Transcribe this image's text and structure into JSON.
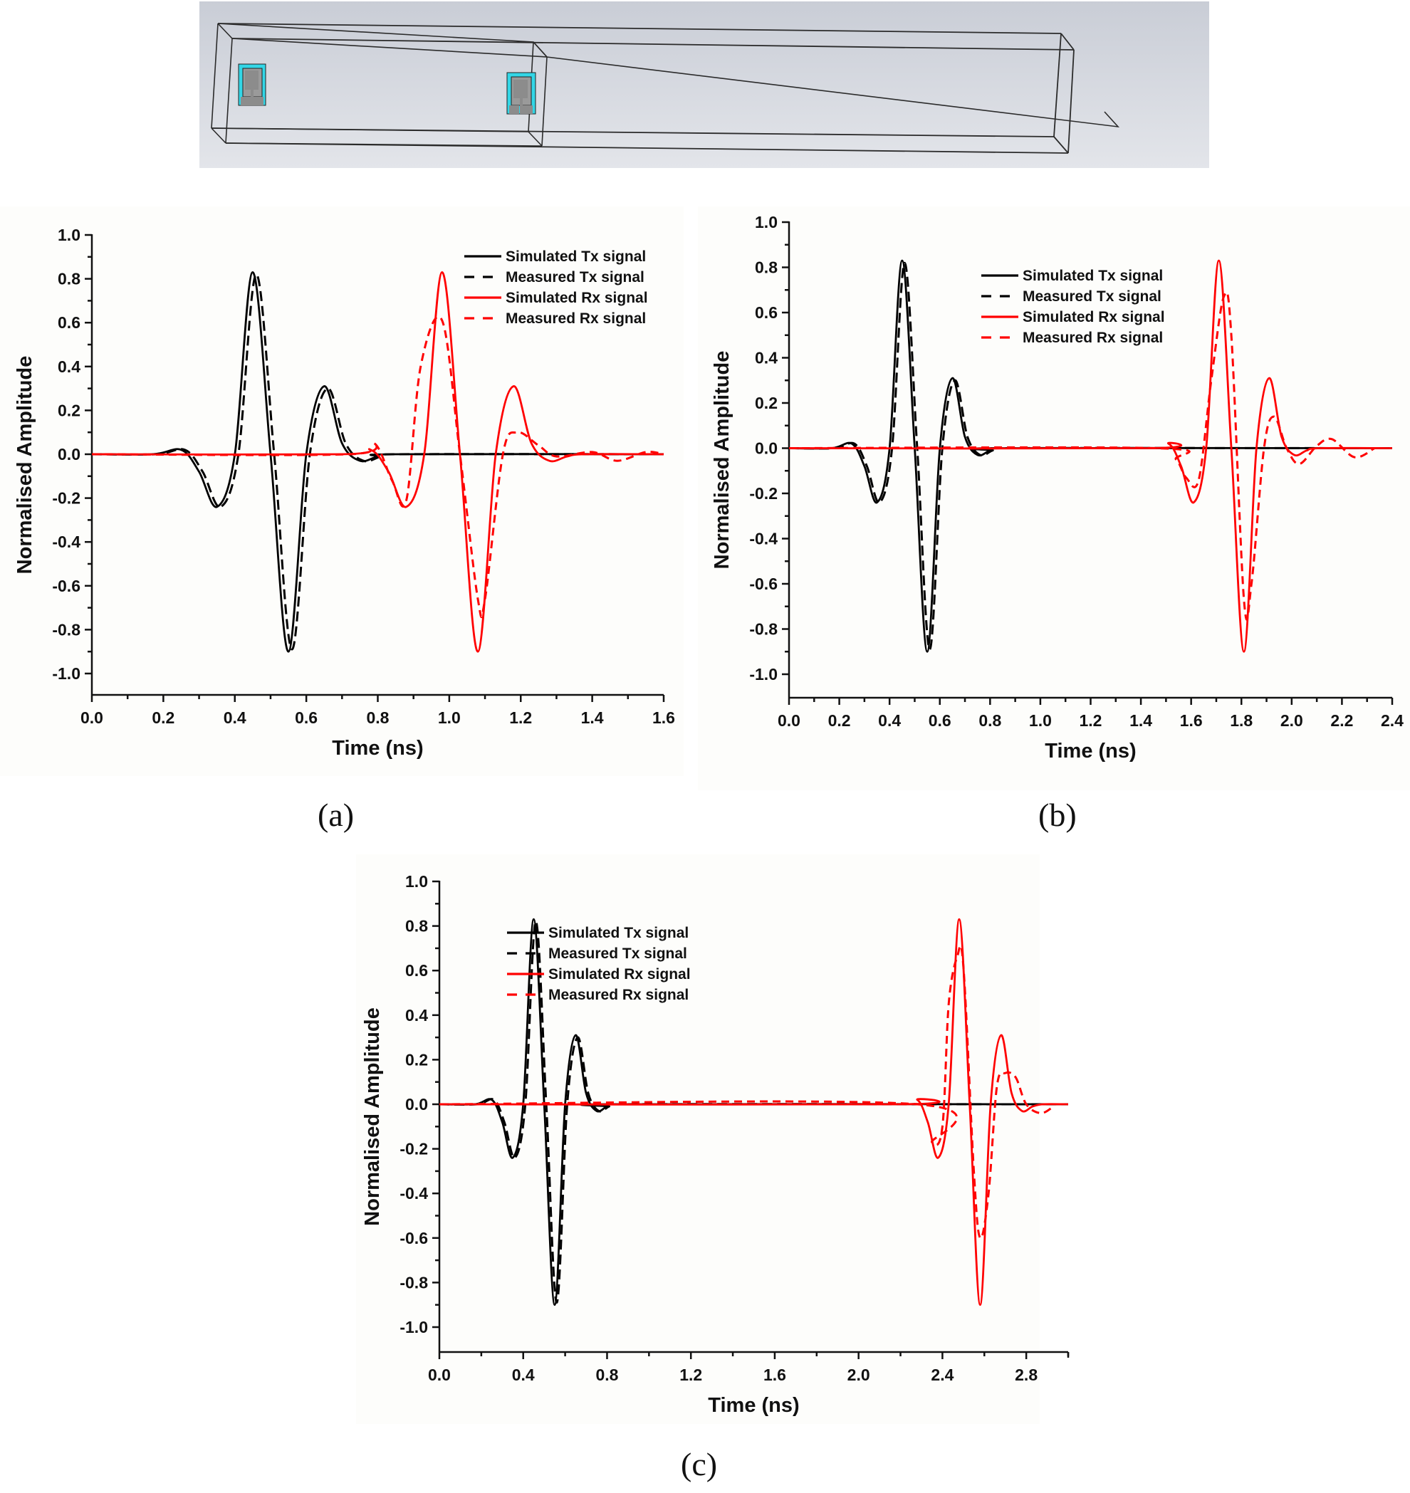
{
  "figure": {
    "captions": [
      "(a)",
      "(b)",
      "(c)"
    ],
    "model_view": {
      "description": "3D simulation model: transparent box with two antennas (Tx left, Rx right)",
      "colors": {
        "background": "#d6d9e0",
        "substrate": "#33d6e6",
        "metal": "#8c8c8c",
        "outline": "#222222"
      }
    }
  },
  "legend": [
    {
      "label": "Simulated Tx signal",
      "color": "#000000",
      "style": "solid"
    },
    {
      "label": "Measured Tx signal",
      "color": "#000000",
      "style": "dashed"
    },
    {
      "label": "Simulated Rx signal",
      "color": "#ff0000",
      "style": "solid"
    },
    {
      "label": "Measured Rx signal",
      "color": "#ff0000",
      "style": "dashed"
    }
  ],
  "chart_data": [
    {
      "id": "a",
      "type": "line",
      "title": "",
      "xlabel": "Time (ns)",
      "ylabel": "Normalised Amplitude",
      "xlim": [
        0.0,
        1.6
      ],
      "ylim": [
        -1.1,
        1.0
      ],
      "xticks": [
        "0.0",
        "0.2",
        "0.4",
        "0.6",
        "0.8",
        "1.0",
        "1.2",
        "1.4",
        "1.6"
      ],
      "yticks": [
        "1.0",
        "0.8",
        "0.6",
        "0.4",
        "0.2",
        "0.0",
        "-0.2",
        "-0.4",
        "-0.6",
        "-0.8",
        "-1.0"
      ],
      "legend_position": "upper right",
      "grid": false,
      "rx_delay_ns": 0.53,
      "series": [
        {
          "name": "Simulated Tx signal",
          "color": "#000000",
          "style": "solid",
          "x": [
            0.0,
            0.17,
            0.25,
            0.3,
            0.35,
            0.4,
            0.45,
            0.5,
            0.55,
            0.6,
            0.65,
            0.7,
            0.75,
            0.8,
            0.85,
            1.6
          ],
          "y": [
            0.0,
            0.0,
            0.02,
            -0.08,
            -0.24,
            0.0,
            0.83,
            0.0,
            -0.9,
            0.0,
            0.31,
            0.05,
            -0.03,
            -0.01,
            0.0,
            0.0
          ]
        },
        {
          "name": "Measured Tx signal",
          "color": "#000000",
          "style": "dashed",
          "x": [
            0.0,
            0.18,
            0.26,
            0.31,
            0.36,
            0.41,
            0.46,
            0.51,
            0.56,
            0.61,
            0.66,
            0.71,
            0.76,
            0.81,
            0.86,
            1.6
          ],
          "y": [
            0.0,
            0.0,
            0.02,
            -0.08,
            -0.24,
            0.0,
            0.82,
            0.0,
            -0.89,
            0.0,
            0.3,
            0.05,
            -0.03,
            -0.01,
            0.0,
            0.0
          ]
        },
        {
          "name": "Simulated Rx signal",
          "color": "#ff0000",
          "style": "solid",
          "x": [
            0.0,
            0.7,
            0.78,
            0.83,
            0.88,
            0.93,
            0.98,
            1.03,
            1.08,
            1.13,
            1.18,
            1.23,
            1.28,
            1.33,
            1.38,
            1.6
          ],
          "y": [
            0.0,
            0.0,
            0.02,
            -0.08,
            -0.24,
            0.0,
            0.83,
            0.0,
            -0.9,
            0.0,
            0.31,
            0.05,
            -0.03,
            -0.01,
            0.0,
            0.0
          ]
        },
        {
          "name": "Measured Rx signal",
          "color": "#ff0000",
          "style": "dashed",
          "x": [
            0.0,
            0.72,
            0.79,
            0.84,
            0.88,
            0.92,
            0.98,
            1.03,
            1.08,
            1.1,
            1.15,
            1.19,
            1.25,
            1.3,
            1.4,
            1.47,
            1.55,
            1.6
          ],
          "y": [
            0.0,
            0.0,
            0.05,
            -0.12,
            -0.21,
            0.4,
            0.61,
            0.0,
            -0.66,
            -0.66,
            0.0,
            0.1,
            0.04,
            -0.01,
            0.01,
            -0.03,
            0.01,
            0.0
          ]
        }
      ]
    },
    {
      "id": "b",
      "type": "line",
      "title": "",
      "xlabel": "Time (ns)",
      "ylabel": "Normalised Amplitude",
      "xlim": [
        0.0,
        2.4
      ],
      "ylim": [
        -1.1,
        1.0
      ],
      "xticks": [
        "0.0",
        "0.2",
        "0.4",
        "0.6",
        "0.8",
        "1.0",
        "1.2",
        "1.4",
        "1.6",
        "1.8",
        "2.0",
        "2.2",
        "2.4"
      ],
      "yticks": [
        "1.0",
        "0.8",
        "0.6",
        "0.4",
        "0.2",
        "0.0",
        "-0.2",
        "-0.4",
        "-0.6",
        "-0.8",
        "-1.0"
      ],
      "legend_position": "upper center",
      "grid": false,
      "rx_delay_ns": 1.26,
      "series": [
        {
          "name": "Simulated Tx signal",
          "color": "#000000",
          "style": "solid",
          "x": [
            0.0,
            0.17,
            0.25,
            0.3,
            0.35,
            0.4,
            0.45,
            0.5,
            0.55,
            0.6,
            0.65,
            0.7,
            0.75,
            0.8,
            0.85,
            2.4
          ],
          "y": [
            0.0,
            0.0,
            0.02,
            -0.08,
            -0.24,
            0.0,
            0.83,
            0.0,
            -0.9,
            0.0,
            0.31,
            0.05,
            -0.03,
            -0.01,
            0.0,
            0.0
          ]
        },
        {
          "name": "Measured Tx signal",
          "color": "#000000",
          "style": "dashed",
          "x": [
            0.0,
            0.18,
            0.26,
            0.31,
            0.36,
            0.41,
            0.46,
            0.51,
            0.56,
            0.61,
            0.66,
            0.71,
            0.76,
            0.81,
            0.86,
            2.4
          ],
          "y": [
            0.0,
            0.0,
            0.02,
            -0.08,
            -0.24,
            0.0,
            0.82,
            0.0,
            -0.89,
            0.0,
            0.3,
            0.05,
            -0.03,
            -0.01,
            0.0,
            0.0
          ]
        },
        {
          "name": "Simulated Rx signal",
          "color": "#ff0000",
          "style": "solid",
          "x": [
            0.0,
            1.43,
            1.51,
            1.56,
            1.61,
            1.66,
            1.71,
            1.76,
            1.81,
            1.86,
            1.91,
            1.96,
            2.01,
            2.06,
            2.11,
            2.4
          ],
          "y": [
            0.0,
            0.0,
            0.02,
            -0.08,
            -0.24,
            0.0,
            0.83,
            0.0,
            -0.9,
            0.0,
            0.31,
            0.05,
            -0.03,
            -0.01,
            0.0,
            0.0
          ]
        },
        {
          "name": "Measured Rx signal",
          "color": "#ff0000",
          "style": "dashed",
          "x": [
            0.0,
            1.46,
            1.54,
            1.58,
            1.63,
            1.68,
            1.73,
            1.76,
            1.81,
            1.84,
            1.89,
            1.93,
            1.98,
            2.03,
            2.1,
            2.16,
            2.25,
            2.33
          ],
          "y": [
            0.0,
            0.0,
            -0.05,
            -0.13,
            -0.14,
            0.3,
            0.67,
            0.5,
            -0.67,
            -0.6,
            0.0,
            0.14,
            0.0,
            -0.07,
            0.01,
            0.04,
            -0.04,
            0.0
          ]
        }
      ]
    },
    {
      "id": "c",
      "type": "line",
      "title": "",
      "xlabel": "Time (ns)",
      "ylabel": "Normalised Amplitude",
      "xlim": [
        0.0,
        3.0
      ],
      "ylim": [
        -1.1,
        1.0
      ],
      "xticks": [
        "0.0",
        "0.4",
        "0.8",
        "1.2",
        "1.6",
        "2.0",
        "2.4",
        "2.8"
      ],
      "yticks": [
        "1.0",
        "0.8",
        "0.6",
        "0.4",
        "0.2",
        "0.0",
        "-0.2",
        "-0.4",
        "-0.6",
        "-0.8",
        "-1.0"
      ],
      "legend_position": "upper center",
      "grid": false,
      "rx_delay_ns": 2.03,
      "series": [
        {
          "name": "Simulated Tx signal",
          "color": "#000000",
          "style": "solid",
          "x": [
            0.0,
            0.17,
            0.25,
            0.3,
            0.35,
            0.4,
            0.45,
            0.5,
            0.55,
            0.6,
            0.65,
            0.7,
            0.75,
            0.8,
            0.85,
            3.0
          ],
          "y": [
            0.0,
            0.0,
            0.02,
            -0.08,
            -0.24,
            0.0,
            0.83,
            0.0,
            -0.9,
            0.0,
            0.31,
            0.05,
            -0.03,
            -0.01,
            0.0,
            0.0
          ]
        },
        {
          "name": "Measured Tx signal",
          "color": "#000000",
          "style": "dashed",
          "x": [
            0.0,
            0.18,
            0.26,
            0.31,
            0.36,
            0.41,
            0.46,
            0.51,
            0.56,
            0.61,
            0.66,
            0.71,
            0.76,
            0.81,
            0.86,
            3.0
          ],
          "y": [
            0.0,
            0.0,
            0.02,
            -0.08,
            -0.24,
            0.0,
            0.82,
            0.0,
            -0.89,
            0.0,
            0.3,
            0.05,
            -0.03,
            -0.01,
            0.0,
            0.0
          ]
        },
        {
          "name": "Simulated Rx signal",
          "color": "#ff0000",
          "style": "solid",
          "x": [
            0.0,
            2.2,
            2.28,
            2.33,
            2.38,
            2.43,
            2.48,
            2.53,
            2.58,
            2.63,
            2.68,
            2.73,
            2.78,
            2.83,
            2.88,
            3.0
          ],
          "y": [
            0.0,
            0.0,
            0.02,
            -0.08,
            -0.24,
            0.0,
            0.83,
            0.0,
            -0.9,
            0.0,
            0.31,
            0.05,
            -0.03,
            -0.01,
            0.0,
            0.0
          ]
        },
        {
          "name": "Measured Rx signal",
          "color": "#ff0000",
          "style": "dashed",
          "x": [
            0.0,
            2.28,
            2.35,
            2.4,
            2.43,
            2.47,
            2.5,
            2.55,
            2.58,
            2.62,
            2.66,
            2.7,
            2.75,
            2.8,
            2.87,
            2.93
          ],
          "y": [
            0.0,
            0.0,
            -0.17,
            -0.1,
            0.45,
            0.66,
            0.62,
            -0.3,
            -0.6,
            -0.4,
            0.08,
            0.14,
            0.12,
            0.0,
            -0.04,
            -0.01
          ]
        }
      ]
    }
  ]
}
